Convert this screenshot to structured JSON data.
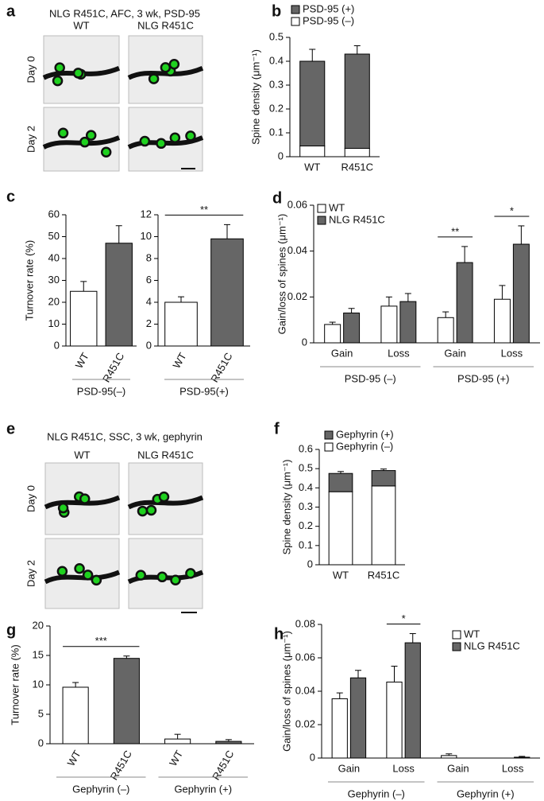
{
  "image_panels": [
    {
      "panel_label": "a",
      "title": "NLG R451C, AFC, 3 wk, PSD-95",
      "columns": [
        "WT",
        "NLG R451C"
      ],
      "rows": [
        "Day 0",
        "Day 2"
      ]
    },
    {
      "panel_label": "e",
      "title": "NLG R451C, SSC, 3 wk, gephyrin",
      "columns": [
        "WT",
        "NLG R451C"
      ],
      "rows": [
        "Day 0",
        "Day 2"
      ]
    }
  ],
  "chart_data": [
    {
      "type": "stacked_bar",
      "panel_label": "b",
      "ylabel": "Spine density (μm⁻¹)",
      "categories": [
        "WT",
        "R451C"
      ],
      "series": [
        {
          "name": "PSD-95 (–)",
          "color": "#ffffff",
          "values": [
            0.045,
            0.035
          ],
          "errors": [
            0.007,
            0.003
          ]
        },
        {
          "name": "PSD-95 (+)",
          "color": "#666666",
          "values": [
            0.355,
            0.395
          ],
          "errors": [
            0.05,
            0.035
          ]
        }
      ],
      "ylim": [
        0,
        0.5
      ],
      "yticks": [
        0,
        0.1,
        0.2,
        0.3,
        0.4,
        0.5
      ]
    },
    {
      "type": "bar",
      "panel_label": "c",
      "ylabel": "Turnover rate (%)",
      "categories": [
        "WT",
        "R451C"
      ],
      "values": [
        25,
        47
      ],
      "errors": [
        4.5,
        8
      ],
      "colors": [
        "#ffffff",
        "#666666"
      ],
      "ylim": [
        0,
        60
      ],
      "yticks": [
        0,
        10,
        20,
        30,
        40,
        50,
        60
      ],
      "groups": [
        "PSD-95(–)"
      ]
    },
    {
      "type": "bar",
      "categories": [
        "WT",
        "R451C"
      ],
      "values": [
        4,
        9.8
      ],
      "errors": [
        0.5,
        1.3
      ],
      "colors": [
        "#ffffff",
        "#666666"
      ],
      "ylim": [
        0,
        12
      ],
      "yticks": [
        0,
        2,
        4,
        6,
        8,
        10,
        12
      ],
      "groups": [
        "PSD-95(+)"
      ],
      "significance": [
        "**"
      ]
    },
    {
      "type": "grouped_bar",
      "panel_label": "d",
      "ylabel": "Gain/loss of spines (μm⁻¹)",
      "categories": [
        "Gain",
        "Loss",
        "Gain",
        "Loss"
      ],
      "groups": [
        "PSD-95 (–)",
        "PSD-95 (+)"
      ],
      "series": [
        {
          "name": "WT",
          "color": "#ffffff",
          "values": [
            0.008,
            0.016,
            0.011,
            0.019
          ],
          "errors": [
            0.001,
            0.004,
            0.0025,
            0.006
          ]
        },
        {
          "name": "NLG R451C",
          "color": "#666666",
          "values": [
            0.013,
            0.018,
            0.035,
            0.043
          ],
          "errors": [
            0.002,
            0.0035,
            0.007,
            0.008
          ]
        }
      ],
      "significance": [
        null,
        null,
        "**",
        "*"
      ],
      "ylim": [
        0,
        0.06
      ],
      "yticks": [
        0,
        0.02,
        0.04,
        0.06
      ]
    },
    {
      "type": "stacked_bar",
      "panel_label": "f",
      "ylabel": "Spine density (μm⁻¹)",
      "categories": [
        "WT",
        "R451C"
      ],
      "series": [
        {
          "name": "Gephyrin (–)",
          "color": "#ffffff",
          "values": [
            0.38,
            0.41
          ],
          "errors": [
            0.01,
            0.03
          ]
        },
        {
          "name": "Gephyrin (+)",
          "color": "#666666",
          "values": [
            0.095,
            0.08
          ],
          "errors": [
            0.01,
            0.008
          ]
        }
      ],
      "ylim": [
        0,
        0.6
      ],
      "yticks": [
        0,
        0.1,
        0.2,
        0.3,
        0.4,
        0.5,
        0.6
      ]
    },
    {
      "type": "bar",
      "panel_label": "g",
      "ylabel": "Turnover rate (%)",
      "categories": [
        "WT",
        "R451C",
        "WT",
        "R451C"
      ],
      "values": [
        9.6,
        14.5,
        0.8,
        0.4
      ],
      "errors": [
        0.8,
        0.4,
        0.8,
        0.3
      ],
      "colors": [
        "#ffffff",
        "#666666",
        "#ffffff",
        "#666666"
      ],
      "ylim": [
        0,
        20
      ],
      "yticks": [
        0,
        5,
        10,
        15,
        20
      ],
      "groups": [
        "Gephyrin (–)",
        "Gephyrin (+)"
      ],
      "significance": [
        "***",
        null
      ]
    },
    {
      "type": "grouped_bar",
      "panel_label": "h",
      "ylabel": "Gain/loss of spines (μm⁻¹)",
      "categories": [
        "Gain",
        "Loss",
        "Gain",
        "Loss"
      ],
      "groups": [
        "Gephyrin (–)",
        "Gephyrin (+)"
      ],
      "series": [
        {
          "name": "WT",
          "color": "#ffffff",
          "values": [
            0.0355,
            0.0455,
            0.0015,
            0
          ],
          "errors": [
            0.0035,
            0.0095,
            0.001,
            0
          ]
        },
        {
          "name": "NLG R451C",
          "color": "#666666",
          "values": [
            0.048,
            0.069,
            0,
            0.0005
          ],
          "errors": [
            0.0045,
            0.0055,
            0,
            0.0005
          ]
        }
      ],
      "significance": [
        null,
        "*",
        null,
        null
      ],
      "ylim": [
        0,
        0.08
      ],
      "yticks": [
        0,
        0.02,
        0.04,
        0.06,
        0.08
      ]
    }
  ]
}
